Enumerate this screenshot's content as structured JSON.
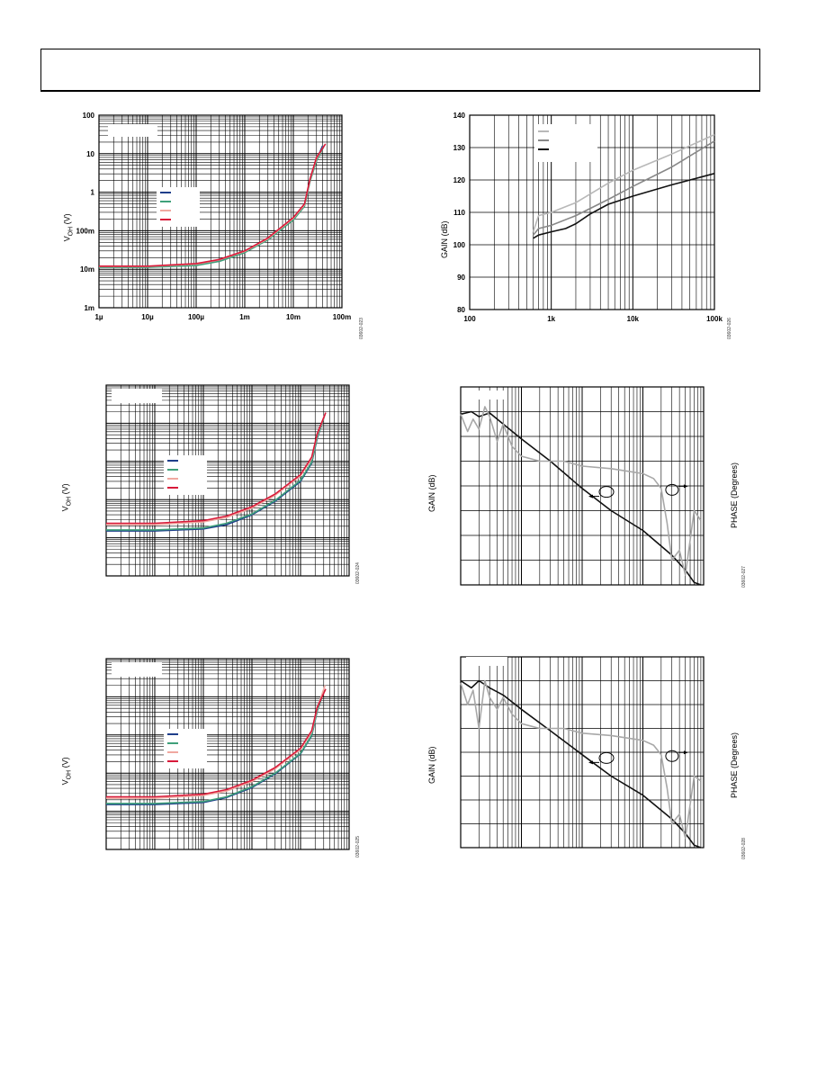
{
  "page": {
    "header_text": ""
  },
  "figures": {
    "fig_voh_1": {
      "ylabel": "V",
      "ylabel_sub": "OH",
      "ylabel_unit": " (V)",
      "figure_id": "03602-023"
    },
    "fig_gain_1": {
      "ylabel": "GAIN (dB)",
      "figure_id": "03602-026"
    },
    "fig_voh_2": {
      "ylabel": "V",
      "ylabel_sub": "OH",
      "ylabel_unit": " (V)",
      "figure_id": "03602-024"
    },
    "fig_gainphase_1": {
      "ylabel": "GAIN (dB)",
      "ylabel_right": "PHASE (Degrees)",
      "figure_id": "03602-027"
    },
    "fig_voh_3": {
      "ylabel": "V",
      "ylabel_sub": "OH",
      "ylabel_unit": " (V)",
      "figure_id": "03602-025"
    },
    "fig_gainphase_2": {
      "ylabel": "GAIN (dB)",
      "ylabel_right": "PHASE (Degrees)",
      "figure_id": "03602-028"
    }
  },
  "chart_data": [
    {
      "id": "fig_voh_1",
      "type": "line",
      "xscale": "log",
      "yscale": "log",
      "xlim": [
        1e-06,
        0.1
      ],
      "ylim": [
        0.001,
        100
      ],
      "xticks": [
        "1µ",
        "10µ",
        "100µ",
        "1m",
        "10m",
        "100m"
      ],
      "yticks": [
        "100",
        "10",
        "1",
        "100m",
        "10m",
        "1m"
      ],
      "xlabel": "",
      "ylabel": "VOH (V)",
      "legend_colors": [
        "#1f3e8a",
        "#3fa07a",
        "#f0a8a0",
        "#d81a3a"
      ],
      "series": [
        {
          "color": "#1f3e8a",
          "x": [
            1e-06,
            1e-05,
            0.0001,
            0.0003,
            0.001,
            0.003,
            0.01,
            0.017,
            0.022,
            0.03,
            0.04
          ],
          "y": [
            0.0115,
            0.0115,
            0.013,
            0.017,
            0.028,
            0.06,
            0.2,
            0.45,
            2,
            7,
            16
          ]
        },
        {
          "color": "#3fa07a",
          "x": [
            1e-06,
            1e-05,
            0.0001,
            0.0003,
            0.001,
            0.003,
            0.01,
            0.017,
            0.022,
            0.03,
            0.042
          ],
          "y": [
            0.0112,
            0.0112,
            0.0125,
            0.016,
            0.027,
            0.058,
            0.19,
            0.43,
            1.9,
            6.5,
            15
          ]
        },
        {
          "color": "#f0a8a0",
          "x": [
            1e-06,
            1e-05,
            0.0001,
            0.0003,
            0.001,
            0.003,
            0.01,
            0.017,
            0.022,
            0.03,
            0.044
          ],
          "y": [
            0.0118,
            0.0118,
            0.0135,
            0.0175,
            0.029,
            0.062,
            0.21,
            0.47,
            2.1,
            7.5,
            17
          ]
        },
        {
          "color": "#d81a3a",
          "x": [
            1e-06,
            1e-05,
            0.0001,
            0.0003,
            0.001,
            0.003,
            0.01,
            0.017,
            0.022,
            0.03,
            0.046
          ],
          "y": [
            0.012,
            0.012,
            0.014,
            0.018,
            0.03,
            0.065,
            0.22,
            0.5,
            2.2,
            8,
            18
          ]
        }
      ]
    },
    {
      "id": "fig_gain_1",
      "type": "line",
      "xscale": "log",
      "yscale": "linear",
      "xlim": [
        100,
        100000
      ],
      "ylim": [
        80,
        140
      ],
      "xticks": [
        "100",
        "1k",
        "10k",
        "100k"
      ],
      "yticks": [
        "140",
        "130",
        "120",
        "110",
        "100",
        "90",
        "80"
      ],
      "xlabel": "",
      "ylabel": "GAIN (dB)",
      "legend_colors": [
        "#b8b8b8",
        "#888888",
        "#111111"
      ],
      "series": [
        {
          "color": "#b8b8b8",
          "x": [
            600,
            700,
            1000,
            2000,
            5000,
            10000,
            30000,
            100000
          ],
          "y": [
            104,
            109,
            110,
            113,
            119,
            123,
            128,
            134
          ]
        },
        {
          "color": "#888888",
          "x": [
            600,
            700,
            1000,
            2000,
            5000,
            10000,
            30000,
            100000
          ],
          "y": [
            103,
            105,
            106,
            109,
            114,
            118,
            124,
            132
          ]
        },
        {
          "color": "#111111",
          "x": [
            600,
            700,
            1000,
            1500,
            2000,
            3000,
            5000,
            10000,
            30000,
            100000
          ],
          "y": [
            102,
            103,
            104,
            105,
            106.5,
            109.5,
            112.5,
            115,
            118.5,
            122
          ]
        }
      ]
    },
    {
      "id": "fig_voh_2",
      "type": "line",
      "xscale": "log",
      "yscale": "log",
      "xlim": [
        1,
        100000
      ],
      "ylim": [
        1,
        100000
      ],
      "ylabel": "VOH (V)",
      "legend_colors": [
        "#1f3e8a",
        "#3fa07a",
        "#f0a8a0",
        "#d81a3a"
      ],
      "series": [
        {
          "color": "#1f3e8a",
          "x": [
            1,
            10,
            100,
            300,
            1000,
            3000,
            10000,
            17000,
            22000,
            30000
          ],
          "y": [
            15,
            15,
            17,
            22,
            40,
            90,
            300,
            900,
            4000,
            14000
          ]
        },
        {
          "color": "#3fa07a",
          "x": [
            1,
            10,
            100,
            300,
            1000,
            3000,
            10000,
            17000,
            22000,
            31000
          ],
          "y": [
            16,
            16,
            18,
            24,
            42,
            95,
            320,
            950,
            4200,
            15000
          ]
        },
        {
          "color": "#f0a8a0",
          "x": [
            1,
            10,
            100,
            300,
            1000,
            3000,
            10000,
            17000,
            22000,
            32000
          ],
          "y": [
            22,
            22,
            26,
            34,
            60,
            130,
            420,
            1200,
            5000,
            17000
          ]
        },
        {
          "color": "#d81a3a",
          "x": [
            1,
            10,
            100,
            300,
            1000,
            3000,
            10000,
            17000,
            22000,
            33000
          ],
          "y": [
            24,
            24,
            28,
            37,
            65,
            140,
            450,
            1300,
            5300,
            19000
          ]
        }
      ]
    },
    {
      "id": "fig_gainphase_1",
      "type": "line",
      "xscale": "log",
      "yscale": "linear",
      "xlim": [
        1,
        10000
      ],
      "ylim": [
        0,
        8
      ],
      "ylabel": "GAIN (dB)",
      "ylabel_right": "PHASE (Degrees)",
      "series": [
        {
          "role": "gain",
          "color": "#111111",
          "x": [
            1,
            1.5,
            2,
            3,
            5,
            10,
            30,
            100,
            300,
            1000,
            3000,
            5000,
            7000,
            9000
          ],
          "y": [
            6.9,
            7.0,
            6.8,
            6.95,
            6.5,
            5.9,
            5.0,
            3.9,
            3.0,
            2.2,
            1.2,
            0.6,
            0.1,
            0.0
          ]
        },
        {
          "role": "phase",
          "color": "#a8a8a8",
          "x": [
            1,
            1.3,
            1.6,
            2,
            2.5,
            3,
            4,
            5,
            7,
            10,
            20,
            50,
            100,
            300,
            1000,
            1500,
            2000,
            2500,
            3000,
            4000,
            5000,
            7000,
            9000
          ],
          "y": [
            6.9,
            6.2,
            6.7,
            6.3,
            7.2,
            6.8,
            5.8,
            6.5,
            5.6,
            5.2,
            5.0,
            5.0,
            4.8,
            4.7,
            4.5,
            4.3,
            3.9,
            2.5,
            1.0,
            1.4,
            0.4,
            3.0,
            2.6
          ]
        }
      ]
    },
    {
      "id": "fig_voh_3",
      "type": "line",
      "xscale": "log",
      "yscale": "log",
      "xlim": [
        1,
        100000
      ],
      "ylim": [
        1,
        100000
      ],
      "ylabel": "VOH (V)",
      "legend_colors": [
        "#1f3e8a",
        "#3fa07a",
        "#f0a8a0",
        "#d81a3a"
      ],
      "series": [
        {
          "color": "#1f3e8a",
          "x": [
            1,
            10,
            100,
            300,
            1000,
            3000,
            10000,
            17000,
            22000,
            30000
          ],
          "y": [
            15,
            15,
            17,
            23,
            42,
            95,
            320,
            950,
            4200,
            14000
          ]
        },
        {
          "color": "#3fa07a",
          "x": [
            1,
            10,
            100,
            300,
            1000,
            3000,
            10000,
            17000,
            22000,
            31000
          ],
          "y": [
            16,
            16,
            18,
            24,
            44,
            100,
            330,
            980,
            4300,
            15000
          ]
        },
        {
          "color": "#f0a8a0",
          "x": [
            1,
            10,
            100,
            300,
            1000,
            3000,
            10000,
            17000,
            22000,
            32000
          ],
          "y": [
            22,
            22,
            26,
            34,
            60,
            130,
            420,
            1200,
            5000,
            20000
          ]
        },
        {
          "color": "#d81a3a",
          "x": [
            1,
            10,
            100,
            300,
            1000,
            3000,
            10000,
            17000,
            22000,
            33000
          ],
          "y": [
            24,
            24,
            28,
            37,
            65,
            140,
            450,
            1300,
            5300,
            16000
          ]
        }
      ]
    },
    {
      "id": "fig_gainphase_2",
      "type": "line",
      "xscale": "log",
      "yscale": "linear",
      "xlim": [
        1,
        10000
      ],
      "ylim": [
        0,
        8
      ],
      "ylabel": "GAIN (dB)",
      "ylabel_right": "PHASE (Degrees)",
      "series": [
        {
          "role": "gain",
          "color": "#111111",
          "x": [
            1,
            1.5,
            2,
            3,
            5,
            10,
            30,
            100,
            300,
            1000,
            3000,
            5000,
            7000,
            9000
          ],
          "y": [
            7.0,
            6.7,
            7.0,
            6.7,
            6.4,
            5.8,
            4.9,
            3.9,
            3.0,
            2.2,
            1.2,
            0.6,
            0.1,
            0.0
          ]
        },
        {
          "role": "phase",
          "color": "#a8a8a8",
          "x": [
            1,
            1.3,
            1.6,
            2,
            2.5,
            3,
            4,
            5,
            7,
            10,
            20,
            50,
            100,
            300,
            1000,
            1500,
            2000,
            2500,
            3000,
            4000,
            5000,
            7000,
            9000
          ],
          "y": [
            6.9,
            6.0,
            6.6,
            5.0,
            7.0,
            6.3,
            5.8,
            6.3,
            5.6,
            5.2,
            5.0,
            5.0,
            4.8,
            4.7,
            4.5,
            4.3,
            3.9,
            2.5,
            1.0,
            1.4,
            0.4,
            3.0,
            2.8
          ]
        }
      ]
    }
  ]
}
